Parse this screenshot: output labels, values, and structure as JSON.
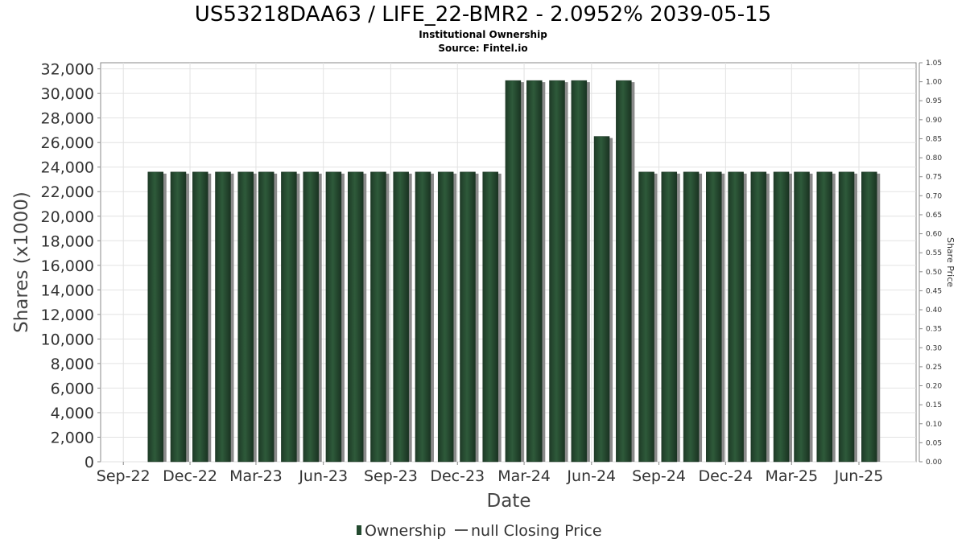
{
  "chart_data": {
    "type": "bar",
    "title": "US53218DAA63 / LIFE_22-BMR2 - 2.0952% 2039-05-15",
    "subtitle_lines": [
      "Institutional Ownership",
      "Source: Fintel.io"
    ],
    "xlabel": "Date",
    "ylabel": "Shares (x1000)",
    "y2label": "Share Price",
    "ylim": [
      0,
      32500
    ],
    "y_ticks": [
      0,
      2000,
      4000,
      6000,
      8000,
      10000,
      12000,
      14000,
      16000,
      18000,
      20000,
      22000,
      24000,
      26000,
      28000,
      30000,
      32000
    ],
    "y_tick_labels": [
      "0",
      "2,000",
      "4,000",
      "6,000",
      "8,000",
      "10,000",
      "12,000",
      "14,000",
      "16,000",
      "18,000",
      "20,000",
      "22,000",
      "24,000",
      "26,000",
      "28,000",
      "30,000",
      "32,000"
    ],
    "y2lim": [
      0,
      1.05
    ],
    "y2_ticks": [
      0,
      0.05,
      0.1,
      0.15,
      0.2,
      0.25,
      0.3,
      0.35,
      0.4,
      0.45,
      0.5,
      0.55,
      0.6,
      0.65,
      0.7,
      0.75,
      0.8,
      0.85,
      0.9,
      0.95,
      1.0,
      1.05
    ],
    "y2_tick_labels": [
      "0.00",
      "0.05",
      "0.10",
      "0.15",
      "0.20",
      "0.25",
      "0.30",
      "0.35",
      "0.40",
      "0.45",
      "0.50",
      "0.55",
      "0.60",
      "0.65",
      "0.70",
      "0.75",
      "0.80",
      "0.85",
      "0.90",
      "0.95",
      "1.00",
      "1.05"
    ],
    "xlim": [
      "2022-08-01",
      "2025-08-18"
    ],
    "x_ticks": [
      "2022-09-01",
      "2022-12-01",
      "2023-03-01",
      "2023-06-01",
      "2023-09-01",
      "2023-12-01",
      "2024-03-01",
      "2024-06-01",
      "2024-09-01",
      "2024-12-01",
      "2025-03-01",
      "2025-06-01"
    ],
    "x_tick_labels": [
      "Sep-22",
      "Dec-22",
      "Mar-23",
      "Jun-23",
      "Sep-23",
      "Dec-23",
      "Mar-24",
      "Jun-24",
      "Sep-24",
      "Dec-24",
      "Mar-25",
      "Jun-25"
    ],
    "bar_dates": [
      "2022-10-15",
      "2022-11-15",
      "2022-12-15",
      "2023-01-15",
      "2023-02-15",
      "2023-03-15",
      "2023-04-15",
      "2023-05-15",
      "2023-06-15",
      "2023-07-15",
      "2023-08-15",
      "2023-09-15",
      "2023-10-15",
      "2023-11-15",
      "2023-12-15",
      "2024-01-15",
      "2024-02-15",
      "2024-03-15",
      "2024-04-15",
      "2024-05-15",
      "2024-06-15",
      "2024-07-15",
      "2024-08-15",
      "2024-09-15",
      "2024-10-15",
      "2024-11-15",
      "2024-12-15",
      "2025-01-15",
      "2025-02-15",
      "2025-03-15",
      "2025-04-15",
      "2025-05-15",
      "2025-06-15"
    ],
    "series": [
      {
        "name": "Ownership",
        "color": "#234a2f",
        "values": [
          23600,
          23600,
          23600,
          23600,
          23600,
          23600,
          23600,
          23600,
          23600,
          23600,
          23600,
          23600,
          23600,
          23600,
          23600,
          23600,
          31050,
          31050,
          31050,
          31050,
          26500,
          31050,
          23600,
          23600,
          23600,
          23600,
          23600,
          23600,
          23600,
          23600,
          23600,
          23600,
          23600
        ]
      }
    ],
    "legend": {
      "position": "bottom",
      "items": [
        {
          "label": "Ownership",
          "symbol": "bar",
          "color": "#234a2f"
        },
        {
          "label": "null Closing Price",
          "symbol": "line",
          "color": "#555555"
        }
      ]
    },
    "grid": true
  }
}
